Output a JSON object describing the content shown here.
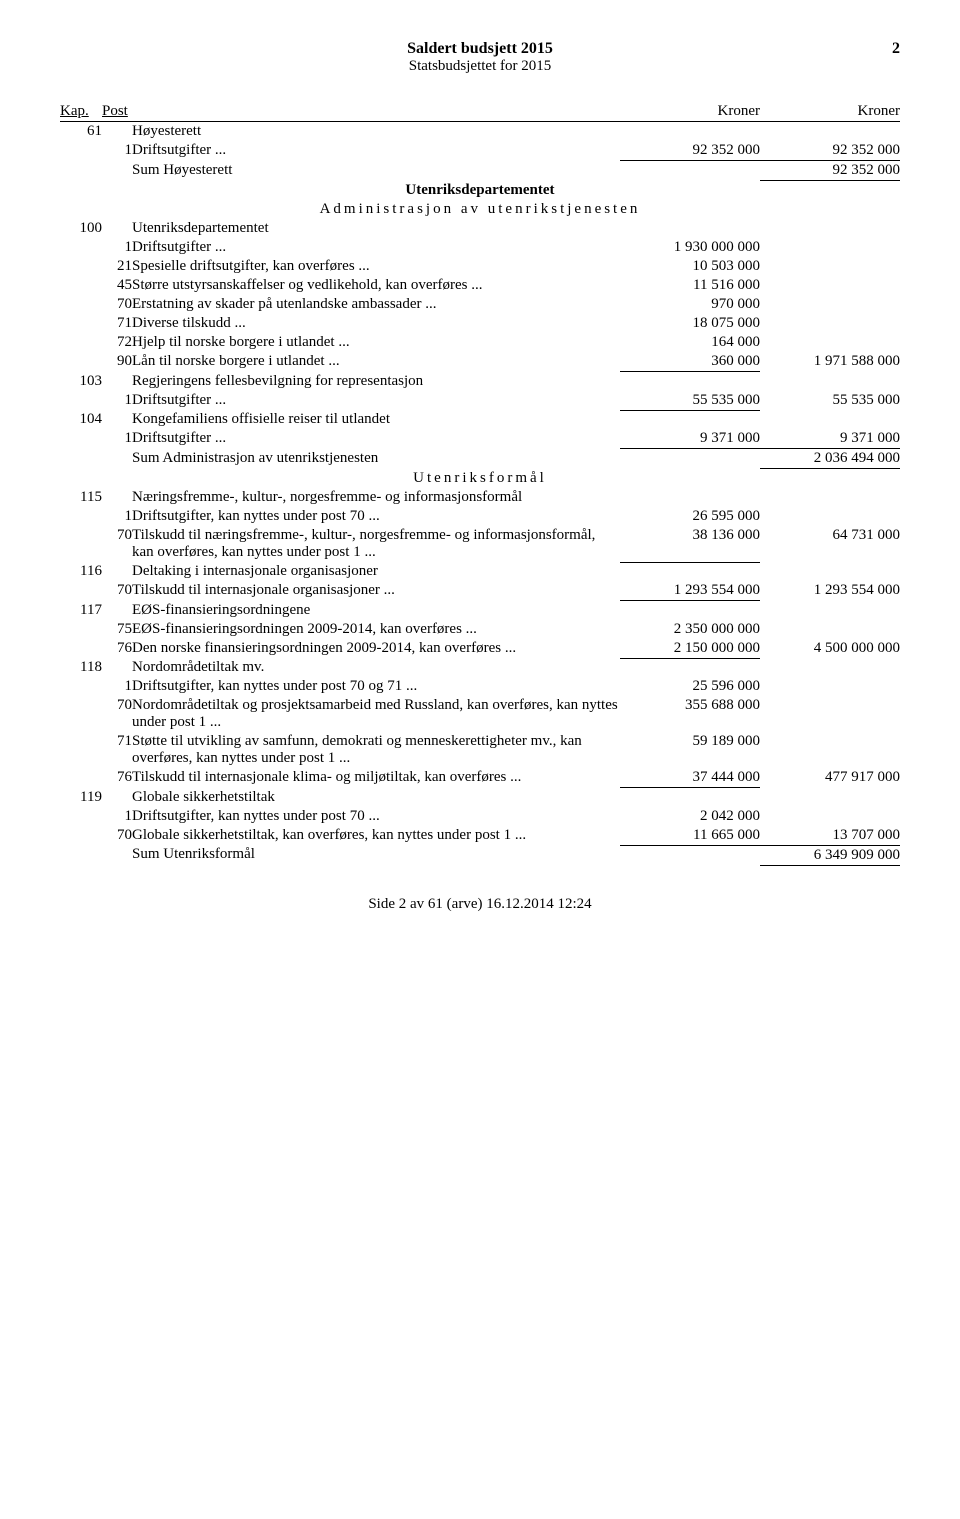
{
  "header": {
    "title": "Saldert budsjett 2015",
    "subtitle": "Statsbudsjettet for 2015",
    "page": "2"
  },
  "col_headers": {
    "kap": "Kap.",
    "post": "Post",
    "kr1": "Kroner",
    "kr2": "Kroner"
  },
  "rows": [
    {
      "kap": "61",
      "desc": "Høyesterett"
    },
    {
      "post": "1",
      "desc": "Driftsutgifter ...",
      "a1": "92 352 000",
      "a2": "92 352 000",
      "u1": true
    },
    {
      "desc": "Sum Høyesterett",
      "a2": "92 352 000",
      "u2": true,
      "t2": true
    },
    {
      "dept": "Utenriksdepartementet"
    },
    {
      "section": "Administrasjon av utenrikstjenesten"
    },
    {
      "kap": "100",
      "desc": "Utenriksdepartementet"
    },
    {
      "post": "1",
      "desc": "Driftsutgifter ...",
      "a1": "1 930 000 000"
    },
    {
      "post": "21",
      "desc": "Spesielle driftsutgifter, kan overføres ...",
      "a1": "10 503 000"
    },
    {
      "post": "45",
      "desc": "Større utstyrsanskaffelser og vedlikehold, kan overføres ...",
      "a1": "11 516 000"
    },
    {
      "post": "70",
      "desc": "Erstatning av skader på utenlandske ambassader ...",
      "a1": "970 000"
    },
    {
      "post": "71",
      "desc": "Diverse tilskudd ...",
      "a1": "18 075 000"
    },
    {
      "post": "72",
      "desc": "Hjelp til norske borgere i utlandet ...",
      "a1": "164 000"
    },
    {
      "post": "90",
      "desc": "Lån til norske borgere i utlandet ...",
      "a1": "360 000",
      "a2": "1 971 588 000",
      "u1": true
    },
    {
      "kap": "103",
      "desc": "Regjeringens fellesbevilgning for representasjon"
    },
    {
      "post": "1",
      "desc": "Driftsutgifter ...",
      "a1": "55 535 000",
      "a2": "55 535 000",
      "u1": true
    },
    {
      "kap": "104",
      "desc": "Kongefamiliens offisielle reiser til utlandet"
    },
    {
      "post": "1",
      "desc": "Driftsutgifter ...",
      "a1": "9 371 000",
      "a2": "9 371 000",
      "u1": true
    },
    {
      "desc": "Sum Administrasjon av utenrikstjenesten",
      "a2": "2 036 494 000",
      "u2": true,
      "t2": true
    },
    {
      "section": "Utenriksformål"
    },
    {
      "kap": "115",
      "desc": "Næringsfremme-, kultur-, norgesfremme- og informasjonsformål"
    },
    {
      "post": "1",
      "desc": "Driftsutgifter, kan nyttes under post 70 ...",
      "a1": "26 595 000"
    },
    {
      "post": "70",
      "desc": "Tilskudd til næringsfremme-, kultur-, norgesfremme- og informasjonsformål, kan overføres, kan nyttes under post 1 ...",
      "a1": "38 136 000",
      "a2": "64 731 000",
      "u1": true
    },
    {
      "kap": "116",
      "desc": "Deltaking i internasjonale organisasjoner"
    },
    {
      "post": "70",
      "desc": "Tilskudd til internasjonale organisasjoner ...",
      "a1": "1 293 554 000",
      "a2": "1 293 554 000",
      "u1": true
    },
    {
      "kap": "117",
      "desc": "EØS-finansieringsordningene"
    },
    {
      "post": "75",
      "desc": "EØS-finansieringsordningen 2009-2014, kan overføres ...",
      "a1": "2 350 000 000"
    },
    {
      "post": "76",
      "desc": "Den norske finansieringsordningen 2009-2014, kan overføres ...",
      "a1": "2 150 000 000",
      "a2": "4 500 000 000",
      "u1": true
    },
    {
      "kap": "118",
      "desc": "Nordområdetiltak mv."
    },
    {
      "post": "1",
      "desc": "Driftsutgifter, kan nyttes under post 70 og 71 ...",
      "a1": "25 596 000"
    },
    {
      "post": "70",
      "desc": "Nordområdetiltak og prosjektsamarbeid med Russland, kan overføres, kan nyttes under post 1 ...",
      "a1": "355 688 000"
    },
    {
      "post": "71",
      "desc": "Støtte til utvikling av samfunn, demokrati og menneskerettigheter mv., kan overføres, kan nyttes under post 1 ...",
      "a1": "59 189 000"
    },
    {
      "post": "76",
      "desc": "Tilskudd til internasjonale klima- og miljøtiltak, kan overføres ...",
      "a1": "37 444 000",
      "a2": "477 917 000",
      "u1": true
    },
    {
      "kap": "119",
      "desc": "Globale sikkerhetstiltak"
    },
    {
      "post": "1",
      "desc": "Driftsutgifter, kan nyttes under post 70 ...",
      "a1": "2 042 000"
    },
    {
      "post": "70",
      "desc": "Globale sikkerhetstiltak, kan overføres, kan nyttes under post 1 ...",
      "a1": "11 665 000",
      "a2": "13 707 000",
      "u1": true
    },
    {
      "desc": "Sum Utenriksformål",
      "a2": "6 349 909 000",
      "u2": true,
      "t2": true
    }
  ],
  "footer": "Side 2 av 61 (arve) 16.12.2014 12:24"
}
